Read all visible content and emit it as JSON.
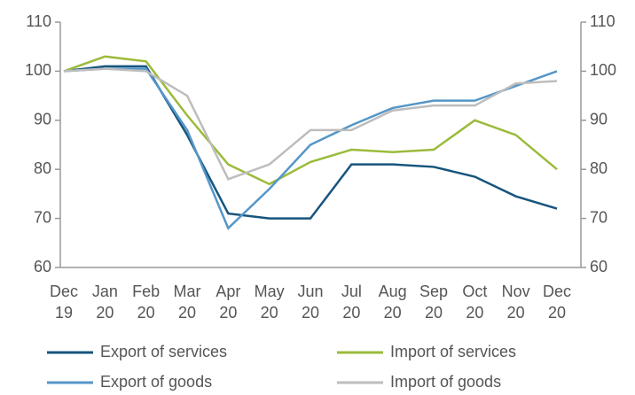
{
  "chart_data": {
    "type": "line",
    "categories": [
      "Dec 19",
      "Jan 20",
      "Feb 20",
      "Mar 20",
      "Apr 20",
      "May 20",
      "Jun 20",
      "Jul 20",
      "Aug 20",
      "Sep 20",
      "Oct 20",
      "Nov 20",
      "Dec 20"
    ],
    "series": [
      {
        "name": "Export of services",
        "color": "#17557d",
        "values": [
          100,
          101,
          101,
          87,
          71,
          70,
          70,
          81,
          81,
          80.5,
          78.5,
          74.5,
          72
        ]
      },
      {
        "name": "Import of services",
        "color": "#9bbb3b",
        "values": [
          100,
          103,
          102,
          91,
          81,
          77,
          81.5,
          84,
          83.5,
          84,
          90,
          87,
          80
        ]
      },
      {
        "name": "Export of goods",
        "color": "#5596c8",
        "values": [
          100,
          100.5,
          100.5,
          88,
          68,
          76,
          85,
          89,
          92.5,
          94,
          94,
          97,
          100
        ]
      },
      {
        "name": "Import of goods",
        "color": "#bdbdbd",
        "values": [
          100,
          100.5,
          100,
          95,
          78,
          81,
          88,
          88,
          92,
          93,
          93,
          97.5,
          98
        ]
      }
    ],
    "ylim": [
      60,
      110
    ],
    "yticks": [
      60,
      70,
      80,
      90,
      100,
      110
    ],
    "y2lim": [
      60,
      110
    ],
    "y2ticks": [
      60,
      70,
      80,
      90,
      100,
      110
    ]
  }
}
